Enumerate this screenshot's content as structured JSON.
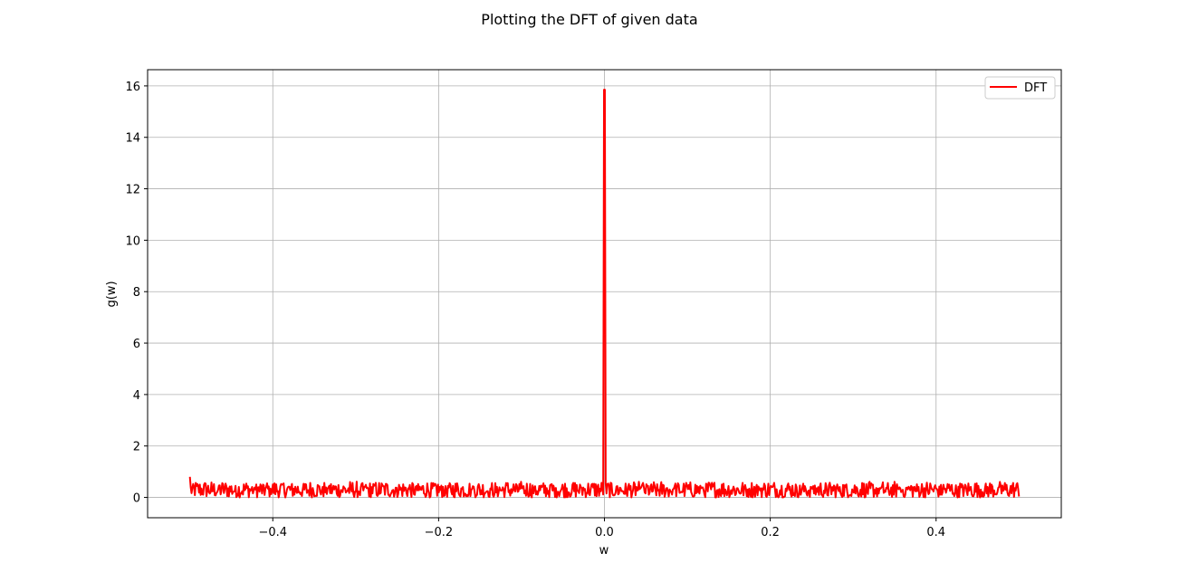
{
  "figure": {
    "title": "Plotting the DFT of given data"
  },
  "chart_data": {
    "type": "line",
    "title": "Plotting the DFT of given data",
    "xlabel": "w",
    "ylabel": "g(w)",
    "xlim": [
      -0.551,
      0.551
    ],
    "ylim": [
      -0.79,
      16.63
    ],
    "grid": true,
    "legend": {
      "position": "upper right",
      "entries": [
        "DFT"
      ]
    },
    "x_ticks": [
      -0.4,
      -0.2,
      0.0,
      0.2,
      0.4
    ],
    "x_tick_labels": [
      "−0.4",
      "−0.2",
      "0.0",
      "0.2",
      "0.4"
    ],
    "y_ticks": [
      0,
      2,
      4,
      6,
      8,
      10,
      12,
      14,
      16
    ],
    "y_tick_labels": [
      "0",
      "2",
      "4",
      "6",
      "8",
      "10",
      "12",
      "14",
      "16"
    ],
    "series": [
      {
        "name": "DFT",
        "color": "#ff0000",
        "x_range": [
          -0.5,
          0.5
        ],
        "points_count": 1000,
        "baseline_mean": 0.27,
        "noise_range": [
          0.0,
          0.65
        ],
        "samples": [
          {
            "x": -0.5,
            "y": 0.8
          },
          {
            "x": -0.499,
            "y": 0.1
          },
          {
            "x": -0.45,
            "y": 0.4
          },
          {
            "x": -0.3,
            "y": 0.3
          },
          {
            "x": -0.1,
            "y": 0.35
          },
          {
            "x": -0.002,
            "y": 0.3
          },
          {
            "x": 0.0,
            "y": 15.85
          },
          {
            "x": 0.002,
            "y": 0.3
          },
          {
            "x": 0.1,
            "y": 0.3
          },
          {
            "x": 0.3,
            "y": 0.3
          },
          {
            "x": 0.45,
            "y": 0.4
          },
          {
            "x": 0.5,
            "y": 0.2
          }
        ]
      }
    ]
  }
}
